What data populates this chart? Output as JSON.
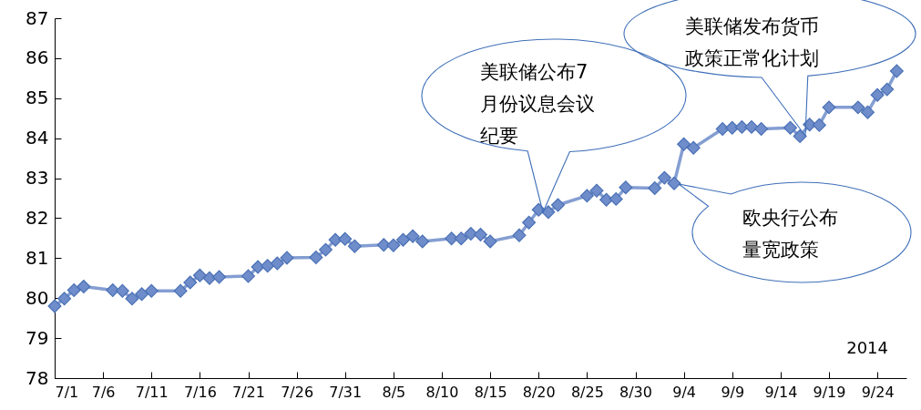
{
  "chart_data": {
    "type": "line",
    "x": [
      "2014-07-01",
      "2014-07-02",
      "2014-07-03",
      "2014-07-04",
      "2014-07-07",
      "2014-07-08",
      "2014-07-09",
      "2014-07-10",
      "2014-07-11",
      "2014-07-14",
      "2014-07-15",
      "2014-07-16",
      "2014-07-17",
      "2014-07-18",
      "2014-07-21",
      "2014-07-22",
      "2014-07-23",
      "2014-07-24",
      "2014-07-25",
      "2014-07-28",
      "2014-07-29",
      "2014-07-30",
      "2014-07-31",
      "2014-08-01",
      "2014-08-04",
      "2014-08-05",
      "2014-08-06",
      "2014-08-07",
      "2014-08-08",
      "2014-08-11",
      "2014-08-12",
      "2014-08-13",
      "2014-08-14",
      "2014-08-15",
      "2014-08-18",
      "2014-08-19",
      "2014-08-20",
      "2014-08-21",
      "2014-08-22",
      "2014-08-25",
      "2014-08-26",
      "2014-08-27",
      "2014-08-28",
      "2014-08-29",
      "2014-09-01",
      "2014-09-02",
      "2014-09-03",
      "2014-09-04",
      "2014-09-05",
      "2014-09-08",
      "2014-09-09",
      "2014-09-10",
      "2014-09-11",
      "2014-09-12",
      "2014-09-15",
      "2014-09-16",
      "2014-09-17",
      "2014-09-18",
      "2014-09-19",
      "2014-09-22",
      "2014-09-23",
      "2014-09-24",
      "2014-09-25",
      "2014-09-26"
    ],
    "series": [
      {
        "color": "#6f8dca",
        "values": [
          79.8,
          79.99,
          80.2,
          80.29,
          80.2,
          80.18,
          79.99,
          80.1,
          80.18,
          80.18,
          80.39,
          80.57,
          80.5,
          80.53,
          80.55,
          80.78,
          80.81,
          80.87,
          81.01,
          81.02,
          81.21,
          81.46,
          81.48,
          81.3,
          81.33,
          81.32,
          81.46,
          81.55,
          81.42,
          81.49,
          81.49,
          81.61,
          81.59,
          81.42,
          81.57,
          81.89,
          82.21,
          82.15,
          82.33,
          82.56,
          82.69,
          82.46,
          82.48,
          82.77,
          82.75,
          83.01,
          82.87,
          83.85,
          83.76,
          84.23,
          84.26,
          84.28,
          84.28,
          84.23,
          84.26,
          84.05,
          84.34,
          84.33,
          84.77,
          84.77,
          84.65,
          85.08,
          85.22,
          85.68
        ]
      }
    ],
    "xlim": [
      "2014-07-01",
      "2014-09-27"
    ],
    "xticks": [
      {
        "value": "2014-07-01",
        "label": "7/1"
      },
      {
        "value": "2014-07-06",
        "label": "7/6"
      },
      {
        "value": "2014-07-11",
        "label": "7/11"
      },
      {
        "value": "2014-07-16",
        "label": "7/16"
      },
      {
        "value": "2014-07-21",
        "label": "7/21"
      },
      {
        "value": "2014-07-26",
        "label": "7/26"
      },
      {
        "value": "2014-07-31",
        "label": "7/31"
      },
      {
        "value": "2014-08-05",
        "label": "8/5"
      },
      {
        "value": "2014-08-10",
        "label": "8/10"
      },
      {
        "value": "2014-08-15",
        "label": "8/15"
      },
      {
        "value": "2014-08-20",
        "label": "8/20"
      },
      {
        "value": "2014-08-25",
        "label": "8/25"
      },
      {
        "value": "2014-08-30",
        "label": "8/30"
      },
      {
        "value": "2014-09-04",
        "label": "9/4"
      },
      {
        "value": "2014-09-09",
        "label": "9/9"
      },
      {
        "value": "2014-09-14",
        "label": "9/14"
      },
      {
        "value": "2014-09-19",
        "label": "9/19"
      },
      {
        "value": "2014-09-24",
        "label": "9/24"
      }
    ],
    "ylim": [
      78,
      87
    ],
    "yticks": [
      78,
      79,
      80,
      81,
      82,
      83,
      84,
      85,
      86,
      87
    ],
    "grid": false,
    "marker": "diamond",
    "line_style": "solid",
    "legend": false,
    "annotations": [
      "美联储公布7月份议息会议纪要",
      "美联储发布货币政策正常化计划",
      "欧央行公布量宽政策",
      "2014"
    ]
  }
}
